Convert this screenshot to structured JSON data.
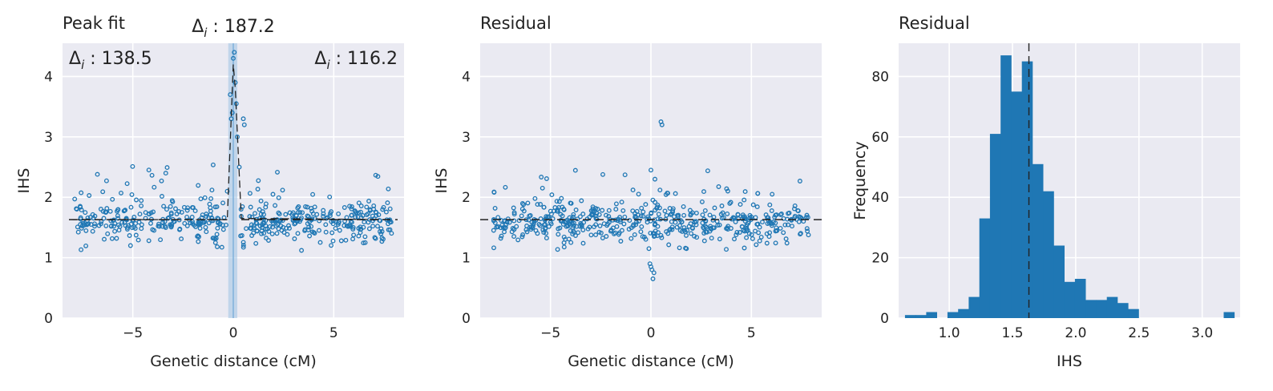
{
  "chart_data": [
    {
      "type": "scatter",
      "title": "Peak fit",
      "xlabel": "Genetic distance (cM)",
      "ylabel": "IHS",
      "xlim": [
        -8.5,
        8.5
      ],
      "ylim": [
        0,
        4.55
      ],
      "xticks": [
        -5,
        0,
        5
      ],
      "xtick_labels": [
        "−5",
        "0",
        "5"
      ],
      "yticks": [
        0,
        1,
        2,
        3,
        4
      ],
      "ytick_labels": [
        "0",
        "1",
        "2",
        "3",
        "4"
      ],
      "grid": true,
      "baseline": 1.63,
      "peak_window": [
        -0.25,
        0.2
      ],
      "annotations": [
        {
          "name": "delta-left",
          "text_main": "Δ",
          "text_sub": "i",
          "text_value": " : 138.5",
          "position": "top-left"
        },
        {
          "name": "delta-center",
          "text_main": "Δ",
          "text_sub": "i",
          "text_value": " : 187.2",
          "position": "top-center"
        },
        {
          "name": "delta-right",
          "text_main": "Δ",
          "text_sub": "i",
          "text_value": " : 116.2",
          "position": "top-right"
        }
      ],
      "fit_curve": {
        "x": [
          -8.0,
          -0.3,
          0.0,
          0.1,
          0.4,
          8.0
        ],
        "y": [
          1.63,
          1.63,
          4.2,
          3.8,
          1.65,
          1.63
        ]
      },
      "outliers": {
        "x": [
          -0.15,
          -0.1,
          -0.05,
          0.0,
          0.05,
          0.1,
          0.15,
          0.2,
          0.3,
          0.5,
          0.55,
          -0.3
        ],
        "y": [
          3.7,
          3.3,
          3.4,
          4.3,
          4.4,
          3.9,
          3.55,
          3.0,
          2.5,
          3.3,
          3.2,
          2.1
        ]
      }
    },
    {
      "type": "scatter",
      "title": "Residual",
      "xlabel": "Genetic distance (cM)",
      "ylabel": "IHS",
      "xlim": [
        -8.5,
        8.5
      ],
      "ylim": [
        0,
        4.55
      ],
      "xticks": [
        -5,
        0,
        5
      ],
      "xtick_labels": [
        "−5",
        "0",
        "5"
      ],
      "yticks": [
        0,
        1,
        2,
        3,
        4
      ],
      "ytick_labels": [
        "0",
        "1",
        "2",
        "3",
        "4"
      ],
      "grid": true,
      "baseline": 1.63,
      "outliers": {
        "x": [
          0.0,
          0.05,
          -0.05,
          0.1,
          0.15,
          0.0,
          0.5,
          0.55,
          0.2,
          -0.1
        ],
        "y": [
          0.85,
          0.8,
          0.9,
          0.65,
          0.75,
          2.45,
          3.25,
          3.2,
          2.3,
          1.15
        ]
      }
    },
    {
      "type": "bar",
      "title": "Residual",
      "xlabel": "IHS",
      "ylabel": "Frequency",
      "xlim": [
        0.6,
        3.3
      ],
      "ylim": [
        0,
        91
      ],
      "xticks": [
        1.0,
        1.5,
        2.0,
        2.5,
        3.0
      ],
      "xtick_labels": [
        "1.0",
        "1.5",
        "2.0",
        "2.5",
        "3.0"
      ],
      "yticks": [
        0,
        20,
        40,
        60,
        80
      ],
      "ytick_labels": [
        "0",
        "20",
        "40",
        "60",
        "80"
      ],
      "grid": true,
      "mean_line": 1.63,
      "bin_edges": [
        0.65,
        0.734,
        0.818,
        0.902,
        0.986,
        1.07,
        1.154,
        1.238,
        1.322,
        1.406,
        1.49,
        1.574,
        1.658,
        1.742,
        1.826,
        1.91,
        1.994,
        2.078,
        2.162,
        2.246,
        2.33,
        2.414,
        2.498,
        2.582,
        2.666,
        2.75,
        2.834,
        2.918,
        3.002,
        3.086,
        3.17,
        3.254
      ],
      "values": [
        1,
        1,
        2,
        0,
        2,
        3,
        7,
        33,
        61,
        87,
        75,
        85,
        51,
        42,
        24,
        12,
        13,
        6,
        6,
        7,
        5,
        3,
        0,
        0,
        0,
        0,
        0,
        0,
        0,
        0,
        2
      ]
    }
  ]
}
